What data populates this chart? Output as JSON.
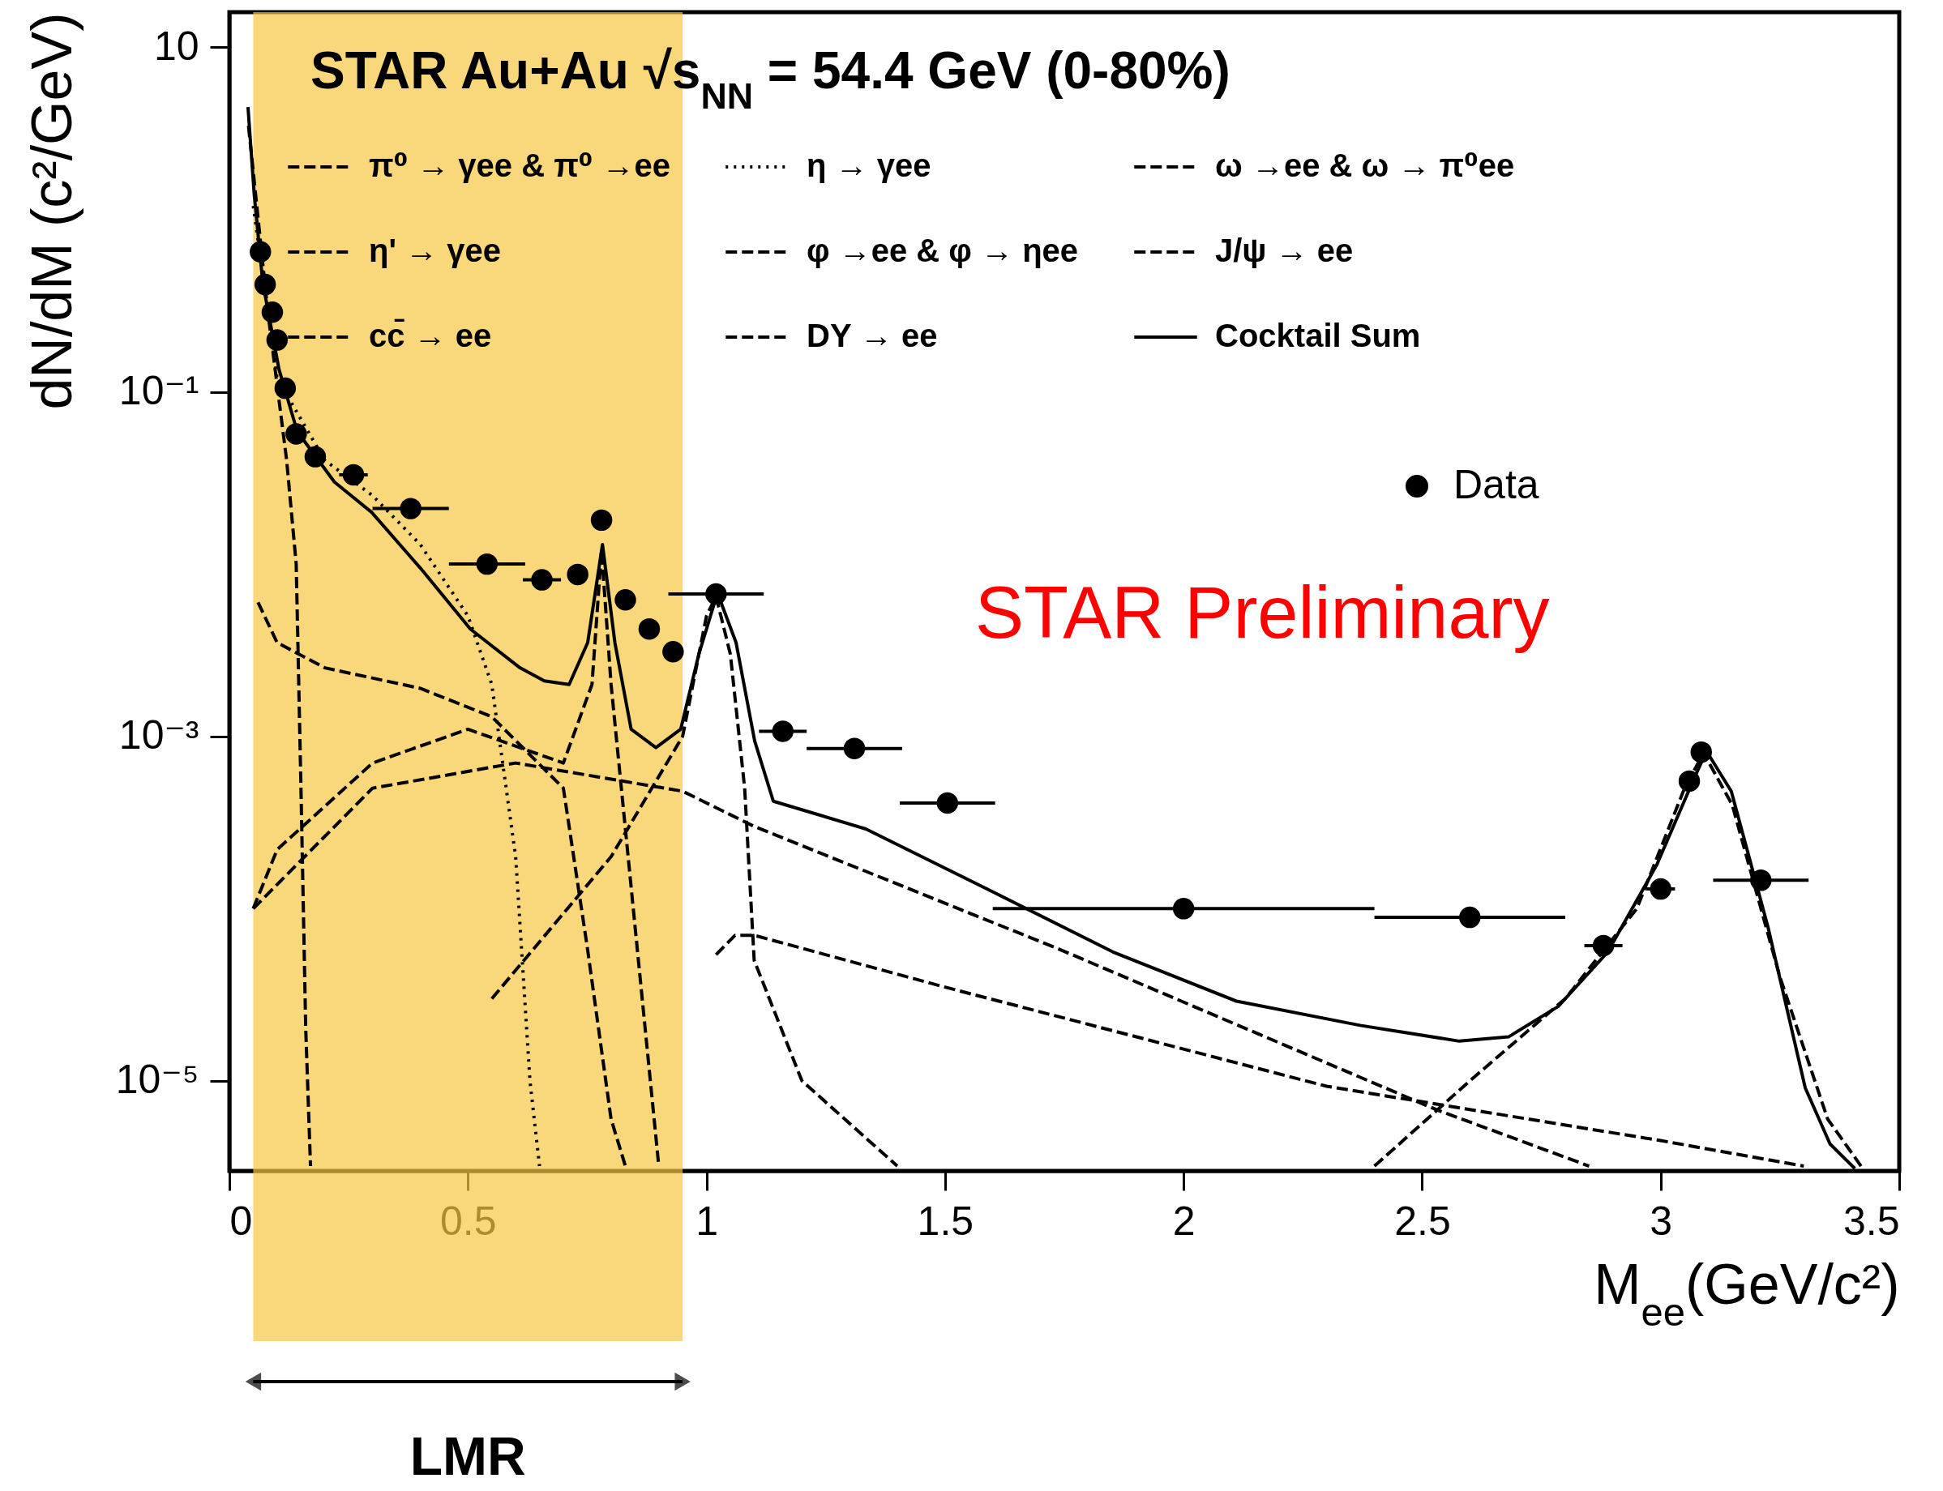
{
  "chart_data": {
    "type": "line",
    "title": "STAR Au+Au  √s$_{NN}$ = 54.4 GeV (0-80%)",
    "xlabel": "M$_{ee}$(GeV/c²)",
    "ylabel": "dN/dM (c²/GeV)",
    "log": "y",
    "grid": false,
    "legend": "top",
    "xlim": [
      0,
      3.5
    ],
    "xticks": [
      0,
      0.5,
      1,
      1.5,
      2,
      2.5,
      3,
      3.5
    ],
    "ylim": [
      3e-06,
      16
    ],
    "yticks": [
      {
        "value": 10,
        "label": "10"
      },
      {
        "value": 0.1,
        "label": "10⁻¹"
      },
      {
        "value": 0.001,
        "label": "10⁻³"
      },
      {
        "value": 1e-05,
        "label": "10⁻⁵"
      }
    ],
    "bands": [
      {
        "axis": "x",
        "from": 0.05,
        "to": 0.95,
        "label": "LMR",
        "color": "#f5c842"
      }
    ],
    "annotations": [
      "STAR Preliminary"
    ],
    "series": [
      {
        "name": "π⁰ → γee & π⁰ →ee",
        "type": "line",
        "color": "#000000",
        "line_style": "dashed",
        "x": [
          0.04,
          0.08,
          0.12,
          0.14,
          0.15,
          0.16,
          0.17
        ],
        "values": [
          3.5,
          0.3,
          0.04,
          0.01,
          0.0005,
          2e-05,
          3.2e-06
        ]
      },
      {
        "name": "η → γee",
        "type": "line",
        "color": "#000000",
        "line_style": "dotted",
        "x": [
          0.05,
          0.1,
          0.2,
          0.3,
          0.4,
          0.5,
          0.55,
          0.6,
          0.63,
          0.65
        ],
        "values": [
          1.2,
          0.12,
          0.04,
          0.025,
          0.013,
          0.005,
          0.002,
          0.0002,
          1e-05,
          3.2e-06
        ]
      },
      {
        "name": "ω →ee & ω → π⁰ee",
        "type": "line",
        "color": "#000000",
        "line_style": "dashed",
        "x": [
          0.05,
          0.1,
          0.3,
          0.5,
          0.7,
          0.76,
          0.78,
          0.8,
          0.85,
          0.9
        ],
        "values": [
          0.0001,
          0.00022,
          0.0007,
          0.0011,
          0.0007,
          0.002,
          0.012,
          0.002,
          8e-05,
          3.2e-06
        ]
      },
      {
        "name": "η' → γee",
        "type": "line",
        "color": "#000000",
        "line_style": "dashed",
        "x": [
          0.06,
          0.1,
          0.2,
          0.4,
          0.55,
          0.7,
          0.75,
          0.8,
          0.83
        ],
        "values": [
          0.006,
          0.0035,
          0.0025,
          0.0019,
          0.0013,
          0.0005,
          6e-05,
          6e-06,
          3.2e-06
        ]
      },
      {
        "name": "φ →ee & φ → ηee",
        "type": "line",
        "color": "#000000",
        "line_style": "dashed",
        "x": [
          0.55,
          0.8,
          0.95,
          1.0,
          1.02,
          1.05,
          1.08,
          1.1,
          1.2,
          1.4
        ],
        "values": [
          3e-05,
          0.0002,
          0.001,
          0.005,
          0.0065,
          0.003,
          0.0005,
          5e-05,
          1e-05,
          3.2e-06
        ]
      },
      {
        "name": "J/ψ → ee",
        "type": "line",
        "color": "#000000",
        "line_style": "dashed",
        "x": [
          2.4,
          2.6,
          2.8,
          2.95,
          3.05,
          3.09,
          3.15,
          3.25,
          3.35,
          3.42
        ],
        "values": [
          3.2e-06,
          1e-05,
          3e-05,
          0.0001,
          0.0005,
          0.0008,
          0.0004,
          4e-05,
          6e-06,
          3.2e-06
        ]
      },
      {
        "name": "cc̄ → ee",
        "type": "line",
        "color": "#000000",
        "line_style": "dashed",
        "x": [
          0.05,
          0.3,
          0.6,
          0.95,
          1.1,
          1.74,
          2.53,
          2.85
        ],
        "values": [
          0.0001,
          0.0005,
          0.0007,
          0.00048,
          0.0003,
          5.8e-05,
          6.8e-06,
          3.2e-06
        ]
      },
      {
        "name": "DY → ee",
        "type": "line",
        "color": "#000000",
        "line_style": "dashed",
        "x": [
          1.02,
          1.06,
          1.1,
          1.5,
          2.3,
          3.0,
          3.3
        ],
        "values": [
          5.4e-05,
          7e-05,
          7e-05,
          3.5e-05,
          9.3e-06,
          4.5e-06,
          3.2e-06
        ]
      },
      {
        "name": "Cocktail Sum",
        "type": "line",
        "color": "#000000",
        "line_style": "solid",
        "x": [
          0.039,
          0.052,
          0.07,
          0.104,
          0.142,
          0.22,
          0.298,
          0.4,
          0.505,
          0.609,
          0.66,
          0.712,
          0.751,
          0.782,
          0.808,
          0.842,
          0.894,
          0.946,
          0.984,
          1.023,
          1.062,
          1.101,
          1.14,
          1.334,
          1.593,
          1.852,
          2.111,
          2.37,
          2.578,
          2.681,
          2.785,
          2.889,
          2.992,
          3.07,
          3.096,
          3.148,
          3.225,
          3.303,
          3.355,
          3.407
        ],
        "values": [
          4.5,
          1.4,
          0.43,
          0.135,
          0.059,
          0.03,
          0.02,
          0.0095,
          0.0042,
          0.0025,
          0.0021,
          0.002,
          0.0035,
          0.013,
          0.0035,
          0.0011,
          0.00086,
          0.0011,
          0.003,
          0.0068,
          0.0035,
          0.00094,
          0.00042,
          0.00029,
          0.000128,
          5.6e-05,
          2.9e-05,
          2.1e-05,
          1.7e-05,
          1.8e-05,
          2.7e-05,
          5.6e-05,
          0.00018,
          0.00057,
          0.00082,
          0.00048,
          7.8e-05,
          9.1e-06,
          4.3e-06,
          3.1e-06
        ]
      },
      {
        "name": "Data",
        "type": "scatter",
        "color": "#000000",
        "marker": "circle",
        "x": [
          0.065,
          0.075,
          0.09,
          0.1,
          0.117,
          0.14,
          0.18,
          0.26,
          0.38,
          0.54,
          0.655,
          0.73,
          0.78,
          0.83,
          0.88,
          0.93,
          1.02,
          1.16,
          1.31,
          1.505,
          2.0,
          2.6,
          2.88,
          3.0,
          3.06,
          3.085,
          3.21
        ],
        "values": [
          0.65,
          0.42,
          0.29,
          0.2,
          0.105,
          0.057,
          0.042,
          0.033,
          0.021,
          0.01,
          0.0081,
          0.0087,
          0.018,
          0.0062,
          0.0042,
          0.0031,
          0.0067,
          0.00107,
          0.00085,
          0.00041,
          0.0001,
          8.9e-05,
          6.1e-05,
          0.00013,
          0.00055,
          0.00081,
          0.000146
        ],
        "xerrors": [
          null,
          null,
          null,
          null,
          null,
          null,
          null,
          0.03,
          0.08,
          0.08,
          0.04,
          null,
          null,
          null,
          null,
          null,
          0.1,
          0.05,
          0.1,
          0.1,
          0.4,
          0.2,
          0.04,
          0.03,
          null,
          null,
          0.1
        ]
      }
    ]
  }
}
